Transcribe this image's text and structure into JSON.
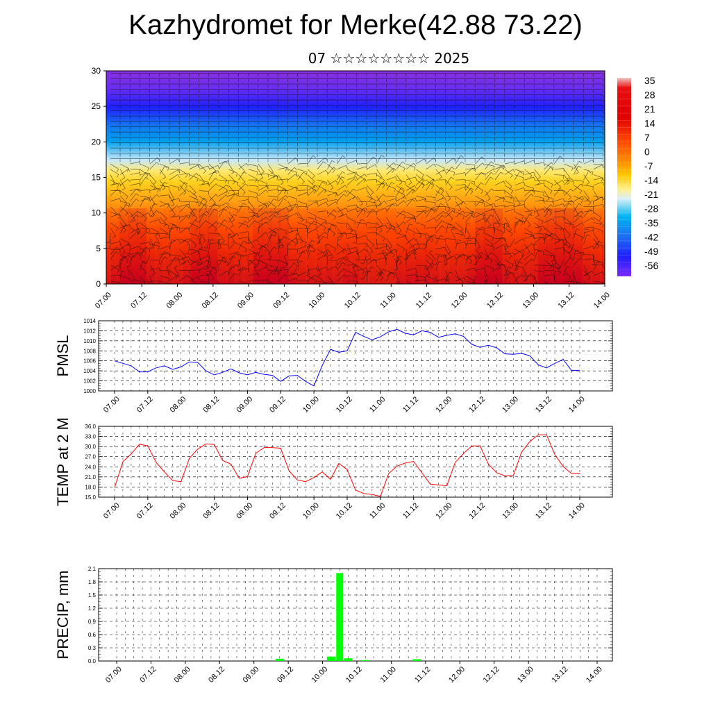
{
  "title": "Kazhydromet for Merke(42.88 73.22)",
  "subtitle": "07 ☆☆☆☆☆☆☆☆ 2025",
  "time_labels": [
    "07.00",
    "07.12",
    "08.00",
    "08.12",
    "09.00",
    "09.12",
    "10.00",
    "10.12",
    "11.00",
    "11.12",
    "12.00",
    "12.12",
    "13.00",
    "13.12",
    "14.00"
  ],
  "chart_data": [
    {
      "type": "heatmap",
      "panel": "vertical cross-section (temperature shading with wind barbs)",
      "x": [
        "07.00",
        "07.12",
        "08.00",
        "08.12",
        "09.00",
        "09.12",
        "10.00",
        "10.12",
        "11.00",
        "11.12",
        "12.00",
        "12.12",
        "13.00",
        "13.12",
        "14.00"
      ],
      "ylim": [
        0,
        30
      ],
      "y_ticks": [
        "0",
        "5",
        "10",
        "15",
        "20",
        "25",
        "30"
      ],
      "colorbar_labels": [
        "35",
        "28",
        "21",
        "14",
        "7",
        "0",
        "-7",
        "-14",
        "-21",
        "-28",
        "-35",
        "-42",
        "-49",
        "-56"
      ],
      "colors": {
        "hot": "#c8001e",
        "warm": "#ff6a00",
        "mild": "#ffd21e",
        "cool": "#c8e8f8",
        "cold": "#00a0f0",
        "frigid": "#2020ff",
        "top": "#8a30e0"
      }
    },
    {
      "type": "line",
      "ylabel": "PMSL",
      "ylim": [
        1000,
        1014
      ],
      "y_ticks": [
        "1000",
        "1002",
        "1004",
        "1006",
        "1008",
        "1010",
        "1012",
        "1014"
      ],
      "color": "#0000ff",
      "values": [
        1006,
        1005.5,
        1005,
        1003.8,
        1003.8,
        1004.6,
        1005,
        1004.3,
        1004.8,
        1005.8,
        1005.7,
        1004,
        1003.2,
        1003.7,
        1004.4,
        1003.6,
        1003.2,
        1003.7,
        1003.3,
        1003.1,
        1001.9,
        1003,
        1003.1,
        1001.9,
        1001,
        1005.1,
        1008.3,
        1007.7,
        1008,
        1011.7,
        1010.9,
        1010.2,
        1010.8,
        1011.8,
        1012.3,
        1011.5,
        1011.2,
        1012,
        1011.7,
        1010.7,
        1011.1,
        1011.4,
        1010.9,
        1009.3,
        1008.7,
        1009.1,
        1008.6,
        1007.4,
        1007.3,
        1007.5,
        1007,
        1005.2,
        1004.6,
        1005.5,
        1006.3,
        1004.1,
        1004.1
      ]
    },
    {
      "type": "line",
      "ylabel": "TEMP at 2 M",
      "ylim": [
        15,
        36
      ],
      "y_ticks": [
        "15.0",
        "18.0",
        "21.0",
        "24.0",
        "27.0",
        "30.0",
        "33.0",
        "36.0"
      ],
      "color": "#ff0000",
      "values": [
        17.8,
        25.5,
        27.8,
        30.7,
        30.2,
        25.3,
        22.5,
        19.9,
        19.6,
        26.5,
        29.2,
        30.8,
        30.6,
        25.9,
        24.8,
        20.6,
        21.1,
        28,
        29.7,
        29.7,
        29.5,
        22.8,
        20.1,
        19.6,
        20.8,
        22.5,
        20.3,
        25,
        23.2,
        17.1,
        16.1,
        15.8,
        15.2,
        22,
        24.2,
        25.1,
        25.6,
        22.2,
        18.9,
        18.6,
        18.4,
        25.3,
        27.9,
        30.2,
        30.2,
        24.8,
        22.2,
        21.3,
        21.4,
        28.4,
        31.5,
        33.5,
        33.5,
        27.6,
        24.1,
        22,
        22.1
      ]
    },
    {
      "type": "bar",
      "ylabel": "PRECIP, mm",
      "ylim": [
        0,
        2.1
      ],
      "y_ticks": [
        "0.0",
        "0.3",
        "0.6",
        "0.9",
        "1.2",
        "1.5",
        "1.8",
        "2.1"
      ],
      "color": "#00ff00",
      "bars": [
        {
          "t": 19,
          "value": 0.05
        },
        {
          "t": 25,
          "value": 0.1
        },
        {
          "t": 26,
          "value": 2.0
        },
        {
          "t": 27,
          "value": 0.06
        },
        {
          "t": 29,
          "value": 0.02
        },
        {
          "t": 35,
          "value": 0.04
        }
      ]
    }
  ]
}
